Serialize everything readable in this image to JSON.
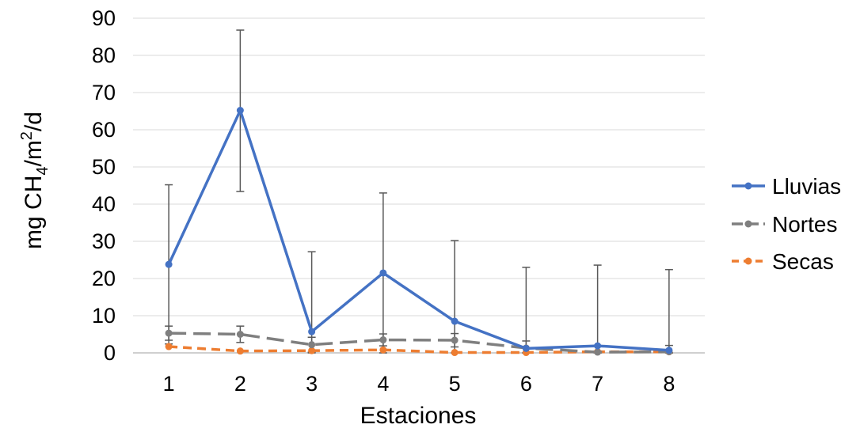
{
  "chart_data": {
    "type": "line",
    "title": "",
    "xlabel": "Estaciones",
    "ylabel": {
      "prefix": "mg CH",
      "sub": "4",
      "middle": "/m",
      "sup": "2",
      "suffix": "/d"
    },
    "categories": [
      "1",
      "2",
      "3",
      "4",
      "5",
      "6",
      "7",
      "8"
    ],
    "ylim": [
      0,
      90
    ],
    "yticks": [
      0,
      10,
      20,
      30,
      40,
      50,
      60,
      70,
      80,
      90
    ],
    "grid": true,
    "legend_position": "right",
    "series": [
      {
        "name": "Lluvias",
        "color": "#4472C4",
        "dash": "solid",
        "values": [
          23.8,
          65.2,
          5.7,
          21.5,
          8.5,
          1.2,
          1.9,
          0.7
        ],
        "error_upper": [
          45.2,
          86.8,
          27.2,
          43.0,
          30.2,
          23.0,
          23.6,
          22.4
        ],
        "error_lower": [
          2.4,
          43.4,
          0,
          0,
          0,
          0,
          0,
          0
        ]
      },
      {
        "name": "Nortes",
        "color": "#7F7F7F",
        "dash": "longdash",
        "values": [
          5.3,
          5.0,
          2.2,
          3.5,
          3.4,
          1.3,
          0.2,
          0.3
        ],
        "error_upper": [
          7.2,
          7.2,
          4.2,
          5.1,
          5.2,
          3.2,
          0.5,
          2.0
        ],
        "error_lower": [
          3.4,
          2.8,
          0.2,
          1.9,
          1.6,
          0,
          0,
          0
        ]
      },
      {
        "name": "Secas",
        "color": "#ED7D31",
        "dash": "shortdash",
        "values": [
          1.7,
          0.5,
          0.6,
          0.8,
          0.1,
          0.1,
          0.3,
          0.3
        ],
        "error_upper": [],
        "error_lower": []
      }
    ]
  }
}
